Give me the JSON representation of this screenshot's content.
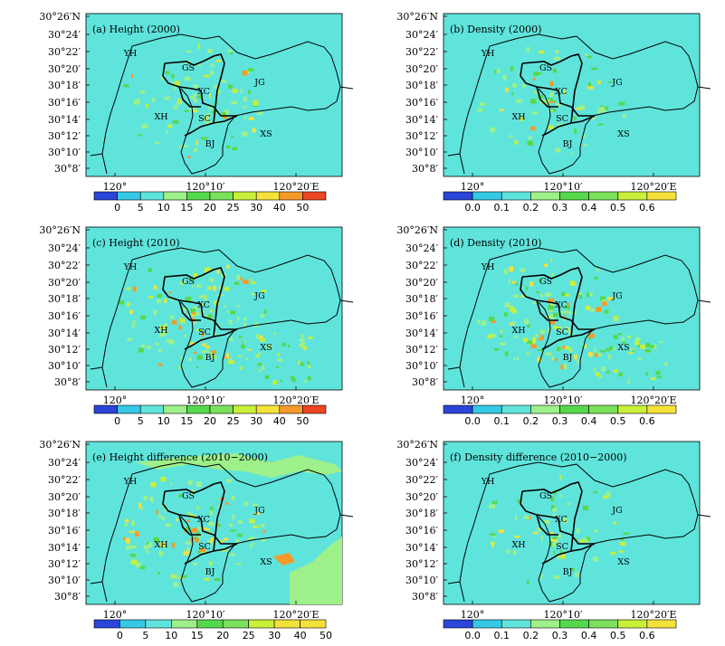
{
  "colors": {
    "background_field": "#5fe4dc",
    "map_sea": "#66e2da",
    "light_green": "#9ef08a",
    "green": "#55d94c",
    "yellow_green": "#c8ef3a",
    "yellow": "#f4e23a",
    "orange": "#f59a2a",
    "red": "#ee4522",
    "blue": "#2a45d8",
    "outline": "#000000"
  },
  "axes": {
    "y_ticks": [
      "30°26′N",
      "30°24′",
      "30°22′",
      "30°20′",
      "30°18′",
      "30°16′",
      "30°14′",
      "30°12′",
      "30°10′",
      "30°8′"
    ],
    "x_ticks": [
      "120°",
      "120°10′",
      "120°20′E"
    ]
  },
  "districts": [
    "YH",
    "GS",
    "XC",
    "JG",
    "XH",
    "SC",
    "BJ",
    "XS"
  ],
  "colorbars": {
    "height": {
      "labels": [
        "0",
        "5",
        "10",
        "15",
        "20",
        "25",
        "30",
        "40",
        "50"
      ],
      "colors": [
        "#2a45d8",
        "#35c9e6",
        "#5fe4dc",
        "#9ef08a",
        "#55d94c",
        "#7be05a",
        "#c8ef3a",
        "#f4e23a",
        "#f59a2a",
        "#ee4522"
      ]
    },
    "height_diff": {
      "labels": [
        "0",
        "5",
        "10",
        "15",
        "20",
        "25",
        "30",
        "40",
        "50"
      ],
      "colors": [
        "#2a45d8",
        "#35c9e6",
        "#5fe4dc",
        "#9ef08a",
        "#55d94c",
        "#7be05a",
        "#c8ef3a",
        "#f4e23a",
        "#f4e23a"
      ]
    },
    "density": {
      "labels": [
        "0.0",
        "0.1",
        "0.2",
        "0.3",
        "0.4",
        "0.5",
        "0.6"
      ],
      "colors": [
        "#2a45d8",
        "#35c9e6",
        "#5fe4dc",
        "#9ef08a",
        "#55d94c",
        "#7be05a",
        "#c8ef3a",
        "#f4e23a"
      ]
    }
  },
  "panels": [
    {
      "id": "a",
      "title": "(a)  Height (2000)",
      "bar": "height",
      "intensity": 0.6
    },
    {
      "id": "b",
      "title": "(b)  Density (2000)",
      "bar": "density",
      "intensity": 0.5
    },
    {
      "id": "c",
      "title": "(c)  Height (2010)",
      "bar": "height",
      "intensity": 0.9
    },
    {
      "id": "d",
      "title": "(d)  Density (2010)",
      "bar": "density",
      "intensity": 0.85
    },
    {
      "id": "e",
      "title": "(e)  Height difference (2010−2000)",
      "bar": "height_diff",
      "intensity": 0.8
    },
    {
      "id": "f",
      "title": "(f)  Density difference (2010−2000)",
      "bar": "density",
      "intensity": 0.45
    }
  ]
}
